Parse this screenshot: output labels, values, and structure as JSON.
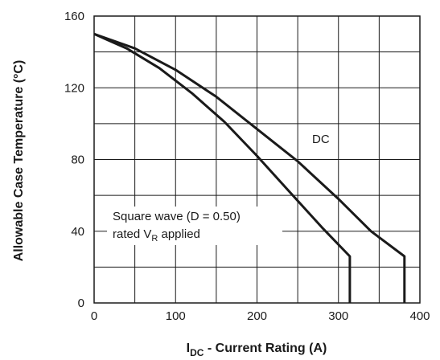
{
  "chart_data": {
    "type": "line",
    "title": "",
    "xlabel": {
      "main": "I",
      "sub": "DC",
      "rest": " - Current Rating (A)"
    },
    "ylabel": "Allowable Case Temperature (°C)",
    "xlim": [
      0,
      400
    ],
    "ylim": [
      0,
      160
    ],
    "x_ticks": [
      "0",
      "100",
      "200",
      "300",
      "400"
    ],
    "y_ticks": [
      "0",
      "40",
      "80",
      "120",
      "160"
    ],
    "grid": true,
    "series": [
      {
        "name": "DC",
        "points": [
          [
            0,
            150
          ],
          [
            50,
            142
          ],
          [
            100,
            130
          ],
          [
            150,
            115
          ],
          [
            200,
            97
          ],
          [
            250,
            79
          ],
          [
            300,
            58
          ],
          [
            340,
            40
          ],
          [
            381,
            26
          ],
          [
            381,
            0
          ]
        ]
      },
      {
        "name": "Square wave (D = 0.50)",
        "points": [
          [
            0,
            150
          ],
          [
            40,
            142
          ],
          [
            80,
            131
          ],
          [
            120,
            117
          ],
          [
            160,
            101
          ],
          [
            200,
            82
          ],
          [
            240,
            62
          ],
          [
            280,
            42
          ],
          [
            314,
            26
          ],
          [
            314,
            0
          ]
        ]
      }
    ],
    "annotations": {
      "dc": "DC",
      "square_line1": "Square wave (D = 0.50)",
      "square_line2_pre": "rated V",
      "square_line2_sub": "R",
      "square_line2_post": " applied"
    },
    "colors": {
      "line": "#1a1a1a",
      "grid": "#1a1a1a"
    }
  }
}
